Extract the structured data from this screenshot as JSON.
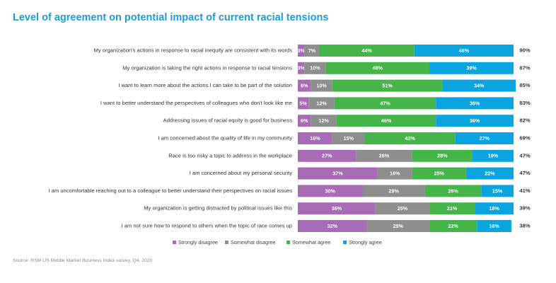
{
  "chart_data": {
    "type": "stacked_bar_horizontal",
    "title": "Level of agreement on potential impact of current racial tensions",
    "source": "Source: RSM US Middle Market Business Index survey, Q4, 2020",
    "categories": [
      "My organization's actions in response to racial inequity are consistent with its words",
      "My organization is taking the right actions in response to racial tensions",
      "I want to learn more about the actions I can take to be part of the solution",
      "I want to better understand the perspectives of colleagues who don't look like me",
      "Addressing issues of racial equity is good for business",
      "I am concerned about the quality of life in my community",
      "Race is too risky a topic to address in the workplace",
      "I am concerned about my personal security",
      "I am uncomfortable reaching out to a colleague to better understand their perspectives on racial issues",
      "My organization is getting distracted by political issues like this",
      "I am not sure how to respond to others when the topic of race comes up"
    ],
    "xlim": [
      0,
      100
    ],
    "series": [
      {
        "name": "Strongly disagree",
        "color": "#a86bb5",
        "values": [
          3,
          3,
          6,
          5,
          6,
          16,
          27,
          37,
          30,
          36,
          32
        ],
        "value_labels": [
          "3%",
          "3%",
          "6%",
          "5%",
          "6%",
          "16%",
          "27%",
          "37%",
          "30%",
          "36%",
          "32%"
        ]
      },
      {
        "name": "Somewhat disagree",
        "color": "#8e8e8e",
        "values": [
          7,
          10,
          10,
          12,
          12,
          15,
          26,
          16,
          29,
          25,
          29
        ],
        "value_labels": [
          "7%",
          "10%",
          "10%",
          "12%",
          "12%",
          "15%",
          "26%",
          "16%",
          "29%",
          "25%",
          "29%"
        ]
      },
      {
        "name": "Somewhat agree",
        "color": "#46b549",
        "values": [
          44,
          48,
          51,
          47,
          46,
          42,
          28,
          25,
          26,
          21,
          22
        ],
        "value_labels": [
          "44%",
          "48%",
          "51%",
          "47%",
          "46%",
          "42%",
          "28%",
          "25%",
          "26%",
          "21%",
          "22%"
        ]
      },
      {
        "name": "Strongly agree",
        "color": "#0aa5e0",
        "values": [
          46,
          39,
          34,
          36,
          36,
          27,
          19,
          22,
          15,
          18,
          16
        ],
        "value_labels": [
          "46%",
          "39%",
          "34%",
          "36%",
          "36%",
          "27%",
          "19%",
          "22%",
          "15%",
          "18%",
          "16%"
        ]
      }
    ],
    "totals": {
      "values": [
        90,
        87,
        85,
        83,
        82,
        69,
        47,
        47,
        41,
        39,
        38
      ],
      "value_labels": [
        "90%",
        "87%",
        "85%",
        "83%",
        "82%",
        "69%",
        "47%",
        "47%",
        "41%",
        "39%",
        "38%"
      ]
    }
  }
}
